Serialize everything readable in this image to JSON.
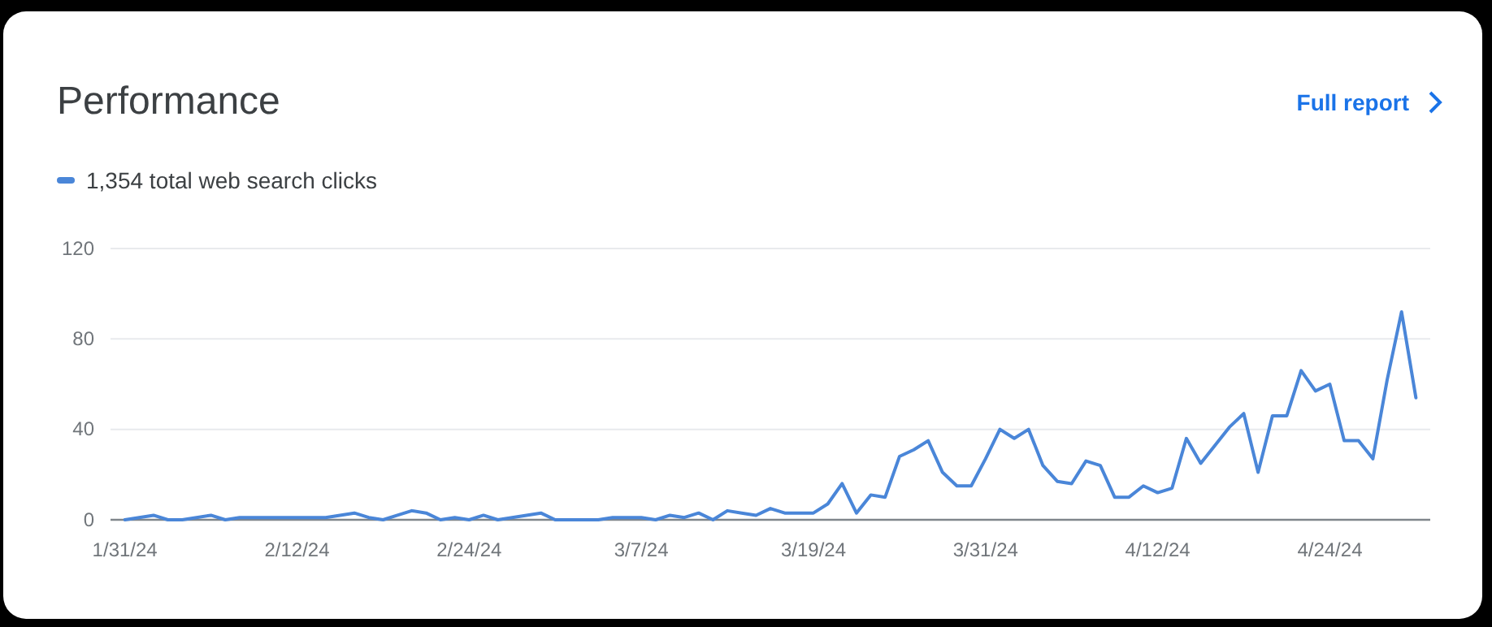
{
  "chart_data": {
    "type": "line",
    "title": "Performance",
    "annotations": [
      "Full report"
    ],
    "legend": "top left",
    "grid": "y",
    "marker": "none",
    "line_style": "solid",
    "ylim": [
      0,
      120
    ],
    "yticks": [
      0,
      40,
      80,
      120
    ],
    "xlim": [
      "--01-30",
      "--05-01"
    ],
    "xticks": [
      {
        "value": "--01-31",
        "label": "1/31/24"
      },
      {
        "value": "--02-12",
        "label": "2/12/24"
      },
      {
        "value": "--02-24",
        "label": "2/24/24"
      },
      {
        "value": "--03-07",
        "label": "3/7/24"
      },
      {
        "value": "--03-19",
        "label": "3/19/24"
      },
      {
        "value": "--03-31",
        "label": "3/31/24"
      },
      {
        "value": "--04-12",
        "label": "4/12/24"
      },
      {
        "value": "--04-24",
        "label": "4/24/24"
      }
    ],
    "x": [
      "--01-31",
      "--02-01",
      "--02-02",
      "--02-03",
      "--02-04",
      "--02-05",
      "--02-06",
      "--02-07",
      "--02-08",
      "--02-09",
      "--02-10",
      "--02-11",
      "--02-12",
      "--02-13",
      "--02-14",
      "--02-15",
      "--02-16",
      "--02-17",
      "--02-18",
      "--02-19",
      "--02-20",
      "--02-21",
      "--02-22",
      "--02-23",
      "--02-24",
      "--02-25",
      "--02-26",
      "--02-27",
      "--02-28",
      "--02-29",
      "--03-01",
      "--03-02",
      "--03-03",
      "--03-04",
      "--03-05",
      "--03-06",
      "--03-07",
      "--03-08",
      "--03-09",
      "--03-10",
      "--03-11",
      "--03-12",
      "--03-13",
      "--03-14",
      "--03-15",
      "--03-16",
      "--03-17",
      "--03-18",
      "--03-19",
      "--03-20",
      "--03-21",
      "--03-22",
      "--03-23",
      "--03-24",
      "--03-25",
      "--03-26",
      "--03-27",
      "--03-28",
      "--03-29",
      "--03-30",
      "--03-31",
      "--04-01",
      "--04-02",
      "--04-03",
      "--04-04",
      "--04-05",
      "--04-06",
      "--04-07",
      "--04-08",
      "--04-09",
      "--04-10",
      "--04-11",
      "--04-12",
      "--04-13",
      "--04-14",
      "--04-15",
      "--04-16",
      "--04-17",
      "--04-18",
      "--04-19",
      "--04-20",
      "--04-21",
      "--04-22",
      "--04-23",
      "--04-24",
      "--04-25",
      "--04-26",
      "--04-27",
      "--04-28",
      "--04-29",
      "--04-30"
    ],
    "series": [
      {
        "name": "1,354 total web search clicks",
        "color": "#4a86d8",
        "values": [
          0,
          1,
          2,
          0,
          0,
          1,
          2,
          0,
          1,
          1,
          1,
          1,
          1,
          1,
          1,
          2,
          3,
          1,
          0,
          2,
          4,
          3,
          0,
          1,
          0,
          2,
          0,
          1,
          2,
          3,
          0,
          0,
          0,
          0,
          1,
          1,
          1,
          0,
          2,
          1,
          3,
          0,
          4,
          3,
          2,
          5,
          3,
          3,
          3,
          7,
          16,
          3,
          11,
          10,
          28,
          31,
          35,
          21,
          15,
          15,
          27,
          40,
          36,
          40,
          24,
          17,
          16,
          26,
          24,
          10,
          10,
          15,
          12,
          14,
          36,
          25,
          33,
          41,
          47,
          21,
          46,
          46,
          66,
          57,
          60,
          35,
          35,
          27,
          62,
          92,
          54
        ]
      }
    ]
  }
}
